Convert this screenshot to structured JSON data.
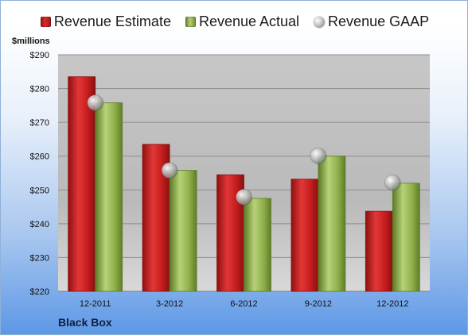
{
  "legend": [
    {
      "label": "Revenue Estimate",
      "color": "#cc2020"
    },
    {
      "label": "Revenue Actual",
      "color": "#8fb04a"
    },
    {
      "label": "Revenue GAAP",
      "color": "#b8b8b8"
    }
  ],
  "unit_label": "$millions",
  "company": "Black Box",
  "chart_data": {
    "type": "bar",
    "categories": [
      "12-2011",
      "3-2012",
      "6-2012",
      "9-2012",
      "12-2012"
    ],
    "series": [
      {
        "name": "Revenue Estimate",
        "values": [
          283.5,
          263.5,
          254.5,
          253.2,
          243.7
        ]
      },
      {
        "name": "Revenue Actual",
        "values": [
          275.8,
          255.8,
          247.5,
          260.0,
          252.0
        ]
      },
      {
        "name": "Revenue GAAP",
        "values": [
          275.8,
          255.8,
          247.9,
          260.1,
          252.2
        ]
      }
    ],
    "ylim": [
      220,
      290
    ],
    "y_ticks": [
      220,
      230,
      240,
      250,
      260,
      270,
      280,
      290
    ],
    "y_tick_labels": [
      "$220",
      "$230",
      "$240",
      "$250",
      "$260",
      "$270",
      "$280",
      "$290"
    ],
    "ylabel": "$millions",
    "grid": true,
    "legend_position": "top"
  }
}
